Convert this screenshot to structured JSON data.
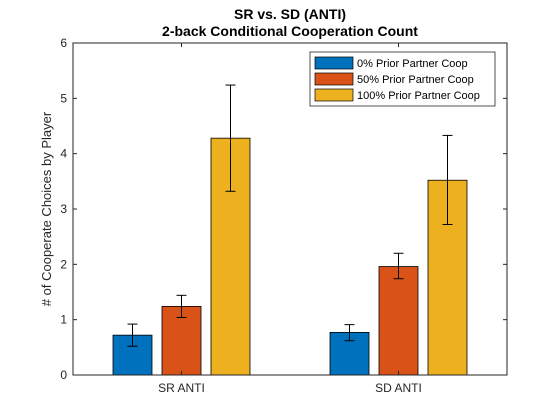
{
  "chart_data": {
    "type": "bar",
    "title": "SR vs. SD (ANTI)",
    "subtitle": "2-back Conditional Cooperation Count",
    "xlabel": "",
    "ylabel": "# of Cooperate Choices by Player",
    "categories": [
      "SR ANTI",
      "SD ANTI"
    ],
    "ylim": [
      0,
      6
    ],
    "yticks": [
      "0",
      "1",
      "2",
      "3",
      "4",
      "5",
      "6"
    ],
    "grid": false,
    "legend_position": "top-right",
    "series": [
      {
        "name": "0% Prior Partner Coop",
        "color": "#0072BD",
        "values": [
          0.72,
          0.77
        ],
        "err_low": [
          0.52,
          0.62
        ],
        "err_high": [
          0.92,
          0.91
        ]
      },
      {
        "name": "50% Prior Partner Coop",
        "color": "#D95319",
        "values": [
          1.24,
          1.96
        ],
        "err_low": [
          1.04,
          1.74
        ],
        "err_high": [
          1.44,
          2.2
        ]
      },
      {
        "name": "100% Prior Partner Coop",
        "color": "#EDB120",
        "values": [
          4.28,
          3.52
        ],
        "err_low": [
          3.32,
          2.72
        ],
        "err_high": [
          5.24,
          4.33
        ]
      }
    ]
  }
}
